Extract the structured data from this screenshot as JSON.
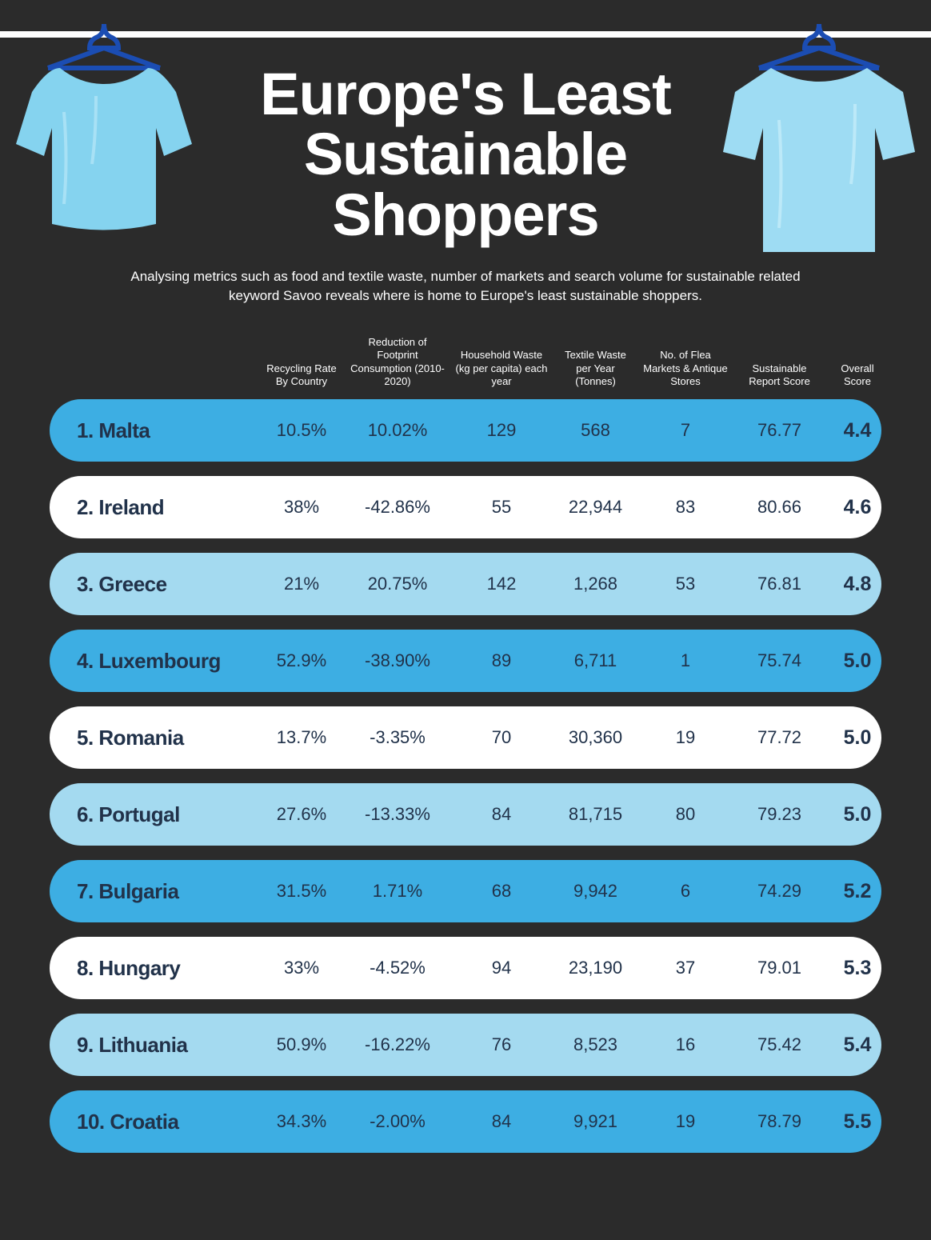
{
  "layout": {
    "background_color": "#2b2b2b",
    "rail_color": "#ffffff",
    "title_color": "#ffffff",
    "title_fontsize": 74,
    "subtitle_fontsize": 17,
    "shirt_color": "#85d3ef",
    "shirt_highlight": "#a8e1f5",
    "hanger_color": "#1b4db3",
    "row_radius": 40
  },
  "title_line1": "Europe's Least",
  "title_line2": "Sustainable",
  "title_line3": "Shoppers",
  "subtitle": "Analysing metrics such as food and textile waste, number of markets and search volume for sustainable related keyword Savoo reveals where is home to Europe's least sustainable shoppers.",
  "columns": [
    "",
    "Recycling Rate By Country",
    "Reduction of Footprint Consumption (2010-2020)",
    "Household Waste (kg per capita) each year",
    "Textile Waste per Year (Tonnes)",
    "No. of Flea Markets & Antique Stores",
    "Sustainable Report Score",
    "Overall Score"
  ],
  "row_colors": {
    "a": {
      "bg": "#3daee3",
      "text": "#21324a"
    },
    "b": {
      "bg": "#ffffff",
      "text": "#21324a"
    },
    "c": {
      "bg": "#a4daf0",
      "text": "#21324a"
    }
  },
  "rows": [
    {
      "style": "a",
      "country": "1.  Malta",
      "recycling": "10.5%",
      "footprint": "10.02%",
      "household": "129",
      "textile": "568",
      "markets": "7",
      "report": "76.77",
      "score": "4.4"
    },
    {
      "style": "b",
      "country": "2.  Ireland",
      "recycling": "38%",
      "footprint": "-42.86%",
      "household": "55",
      "textile": "22,944",
      "markets": "83",
      "report": "80.66",
      "score": "4.6"
    },
    {
      "style": "c",
      "country": "3.  Greece",
      "recycling": "21%",
      "footprint": "20.75%",
      "household": "142",
      "textile": "1,268",
      "markets": "53",
      "report": "76.81",
      "score": "4.8"
    },
    {
      "style": "a",
      "country": "4.  Luxembourg",
      "recycling": "52.9%",
      "footprint": "-38.90%",
      "household": "89",
      "textile": "6,711",
      "markets": "1",
      "report": "75.74",
      "score": "5.0"
    },
    {
      "style": "b",
      "country": "5.  Romania",
      "recycling": "13.7%",
      "footprint": "-3.35%",
      "household": "70",
      "textile": "30,360",
      "markets": "19",
      "report": "77.72",
      "score": "5.0"
    },
    {
      "style": "c",
      "country": "6.  Portugal",
      "recycling": "27.6%",
      "footprint": "-13.33%",
      "household": "84",
      "textile": "81,715",
      "markets": "80",
      "report": "79.23",
      "score": "5.0"
    },
    {
      "style": "a",
      "country": "7.  Bulgaria",
      "recycling": "31.5%",
      "footprint": "1.71%",
      "household": "68",
      "textile": "9,942",
      "markets": "6",
      "report": "74.29",
      "score": "5.2"
    },
    {
      "style": "b",
      "country": "8.  Hungary",
      "recycling": "33%",
      "footprint": "-4.52%",
      "household": "94",
      "textile": "23,190",
      "markets": "37",
      "report": "79.01",
      "score": "5.3"
    },
    {
      "style": "c",
      "country": "9.  Lithuania",
      "recycling": "50.9%",
      "footprint": "-16.22%",
      "household": "76",
      "textile": "8,523",
      "markets": "16",
      "report": "75.42",
      "score": "5.4"
    },
    {
      "style": "a",
      "country": "10. Croatia",
      "recycling": "34.3%",
      "footprint": "-2.00%",
      "household": "84",
      "textile": "9,921",
      "markets": "19",
      "report": "78.79",
      "score": "5.5"
    }
  ]
}
